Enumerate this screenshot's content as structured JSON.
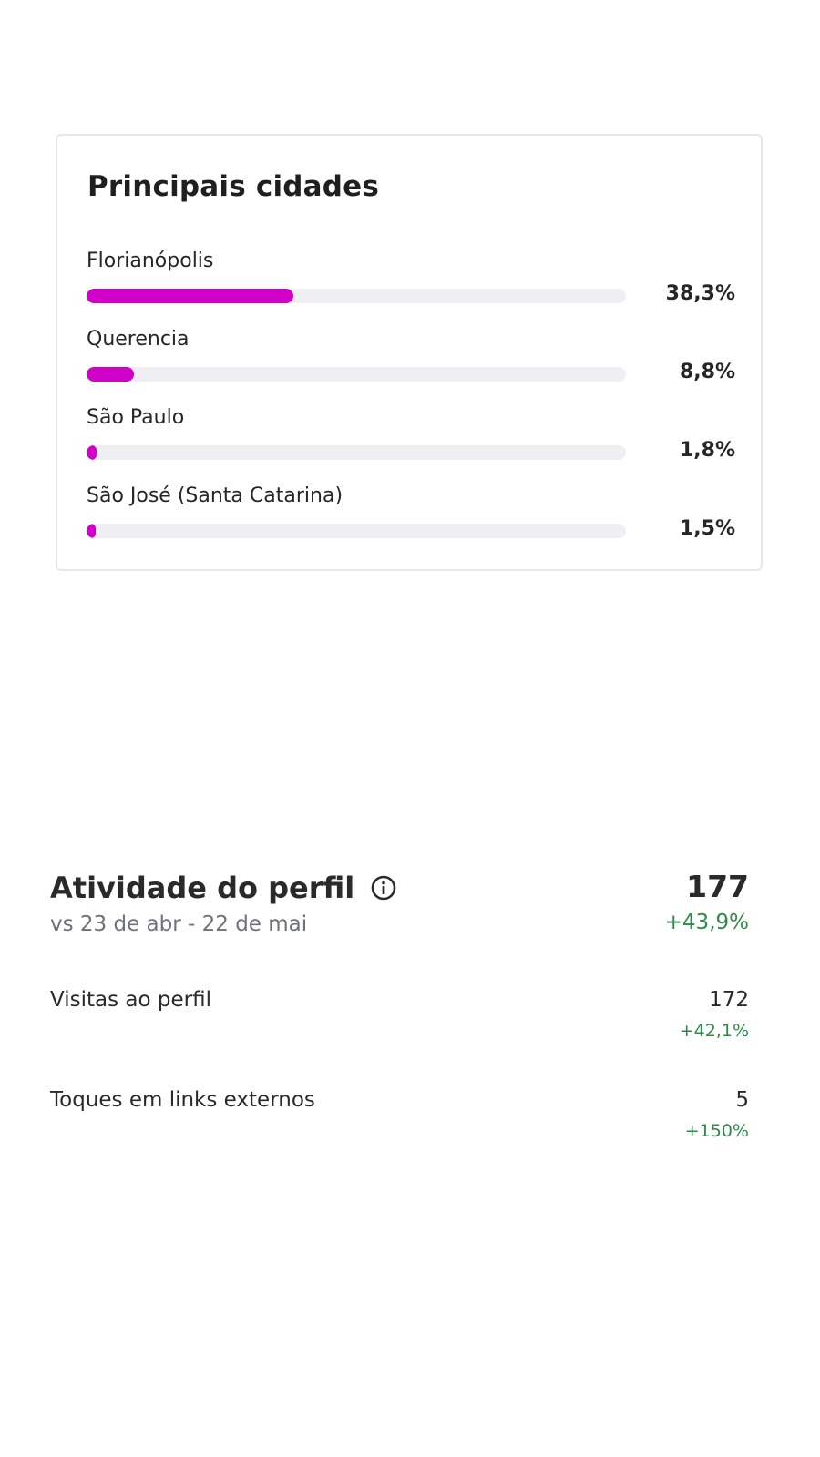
{
  "colors": {
    "bar_fill": "#d000c8",
    "bar_track": "#efeff3",
    "positive_change": "#2f8a4a"
  },
  "top_cities": {
    "title": "Principais cidades",
    "cities": [
      {
        "name": "Florianópolis",
        "percent_label": "38,3%",
        "share": 0.383
      },
      {
        "name": "Querencia",
        "percent_label": "8,8%",
        "share": 0.088
      },
      {
        "name": "São Paulo",
        "percent_label": "1,8%",
        "share": 0.018
      },
      {
        "name": "São José (Santa Catarina)",
        "percent_label": "1,5%",
        "share": 0.015
      }
    ]
  },
  "profile_activity": {
    "title": "Atividade do perfil",
    "info_icon": "info-icon",
    "comparison": "vs 23 de abr - 22 de mai",
    "total": "177",
    "total_change": "+43,9%",
    "metrics": [
      {
        "label": "Visitas ao perfil",
        "value": "172",
        "change": "+42,1%"
      },
      {
        "label": "Toques em links externos",
        "value": "5",
        "change": "+150%"
      }
    ]
  }
}
